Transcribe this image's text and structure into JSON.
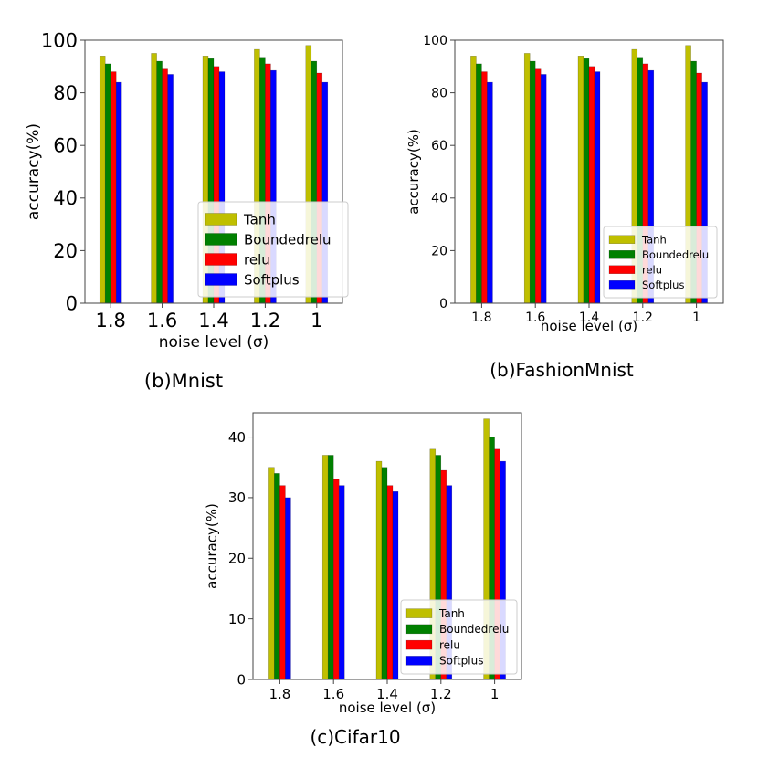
{
  "colors": {
    "Tanh": "#bfbf00",
    "Boundedrelu": "#008000",
    "relu": "#ff0000",
    "Softplus": "#0000ff"
  },
  "chart_data": [
    {
      "type": "bar",
      "caption": "(b)Mnist",
      "categories": [
        "1.8",
        "1.6",
        "1.4",
        "1.2",
        "1"
      ],
      "xlabel": "noise level (σ)",
      "ylabel": "accuracy(%)",
      "ylim": [
        0,
        100
      ],
      "yticks": [
        0,
        20,
        40,
        60,
        80,
        100
      ],
      "legend_position": "lower-right",
      "series": [
        {
          "name": "Tanh",
          "values": [
            94,
            95,
            94,
            96.5,
            98
          ]
        },
        {
          "name": "Boundedrelu",
          "values": [
            91,
            92,
            93,
            93.5,
            92
          ]
        },
        {
          "name": "relu",
          "values": [
            88,
            89,
            90,
            91,
            87.5
          ]
        },
        {
          "name": "Softplus",
          "values": [
            84,
            87,
            88,
            88.5,
            84
          ]
        }
      ]
    },
    {
      "type": "bar",
      "caption": "(b)FashionMnist",
      "categories": [
        "1.8",
        "1.6",
        "1.4",
        "1.2",
        "1"
      ],
      "xlabel": "noise level (σ)",
      "ylabel": "accuracy(%)",
      "ylim": [
        0,
        100
      ],
      "yticks": [
        0,
        20,
        40,
        60,
        80,
        100
      ],
      "legend_position": "lower-right",
      "series": [
        {
          "name": "Tanh",
          "values": [
            94,
            95,
            94,
            96.5,
            98
          ]
        },
        {
          "name": "Boundedrelu",
          "values": [
            91,
            92,
            93,
            93.5,
            92
          ]
        },
        {
          "name": "relu",
          "values": [
            88,
            89,
            90,
            91,
            87.5
          ]
        },
        {
          "name": "Softplus",
          "values": [
            84,
            87,
            88,
            88.5,
            84
          ]
        }
      ]
    },
    {
      "type": "bar",
      "caption": "(c)Cifar10",
      "categories": [
        "1.8",
        "1.6",
        "1.4",
        "1.2",
        "1"
      ],
      "xlabel": "noise level (σ)",
      "ylabel": "accuracy(%)",
      "ylim": [
        0,
        44
      ],
      "yticks": [
        0,
        10,
        20,
        30,
        40
      ],
      "legend_position": "lower-right",
      "series": [
        {
          "name": "Tanh",
          "values": [
            35,
            37,
            36,
            38,
            43
          ]
        },
        {
          "name": "Boundedrelu",
          "values": [
            34,
            37,
            35,
            37,
            40
          ]
        },
        {
          "name": "relu",
          "values": [
            32,
            33,
            32,
            34.5,
            38
          ]
        },
        {
          "name": "Softplus",
          "values": [
            30,
            32,
            31,
            32,
            36
          ]
        }
      ]
    }
  ]
}
